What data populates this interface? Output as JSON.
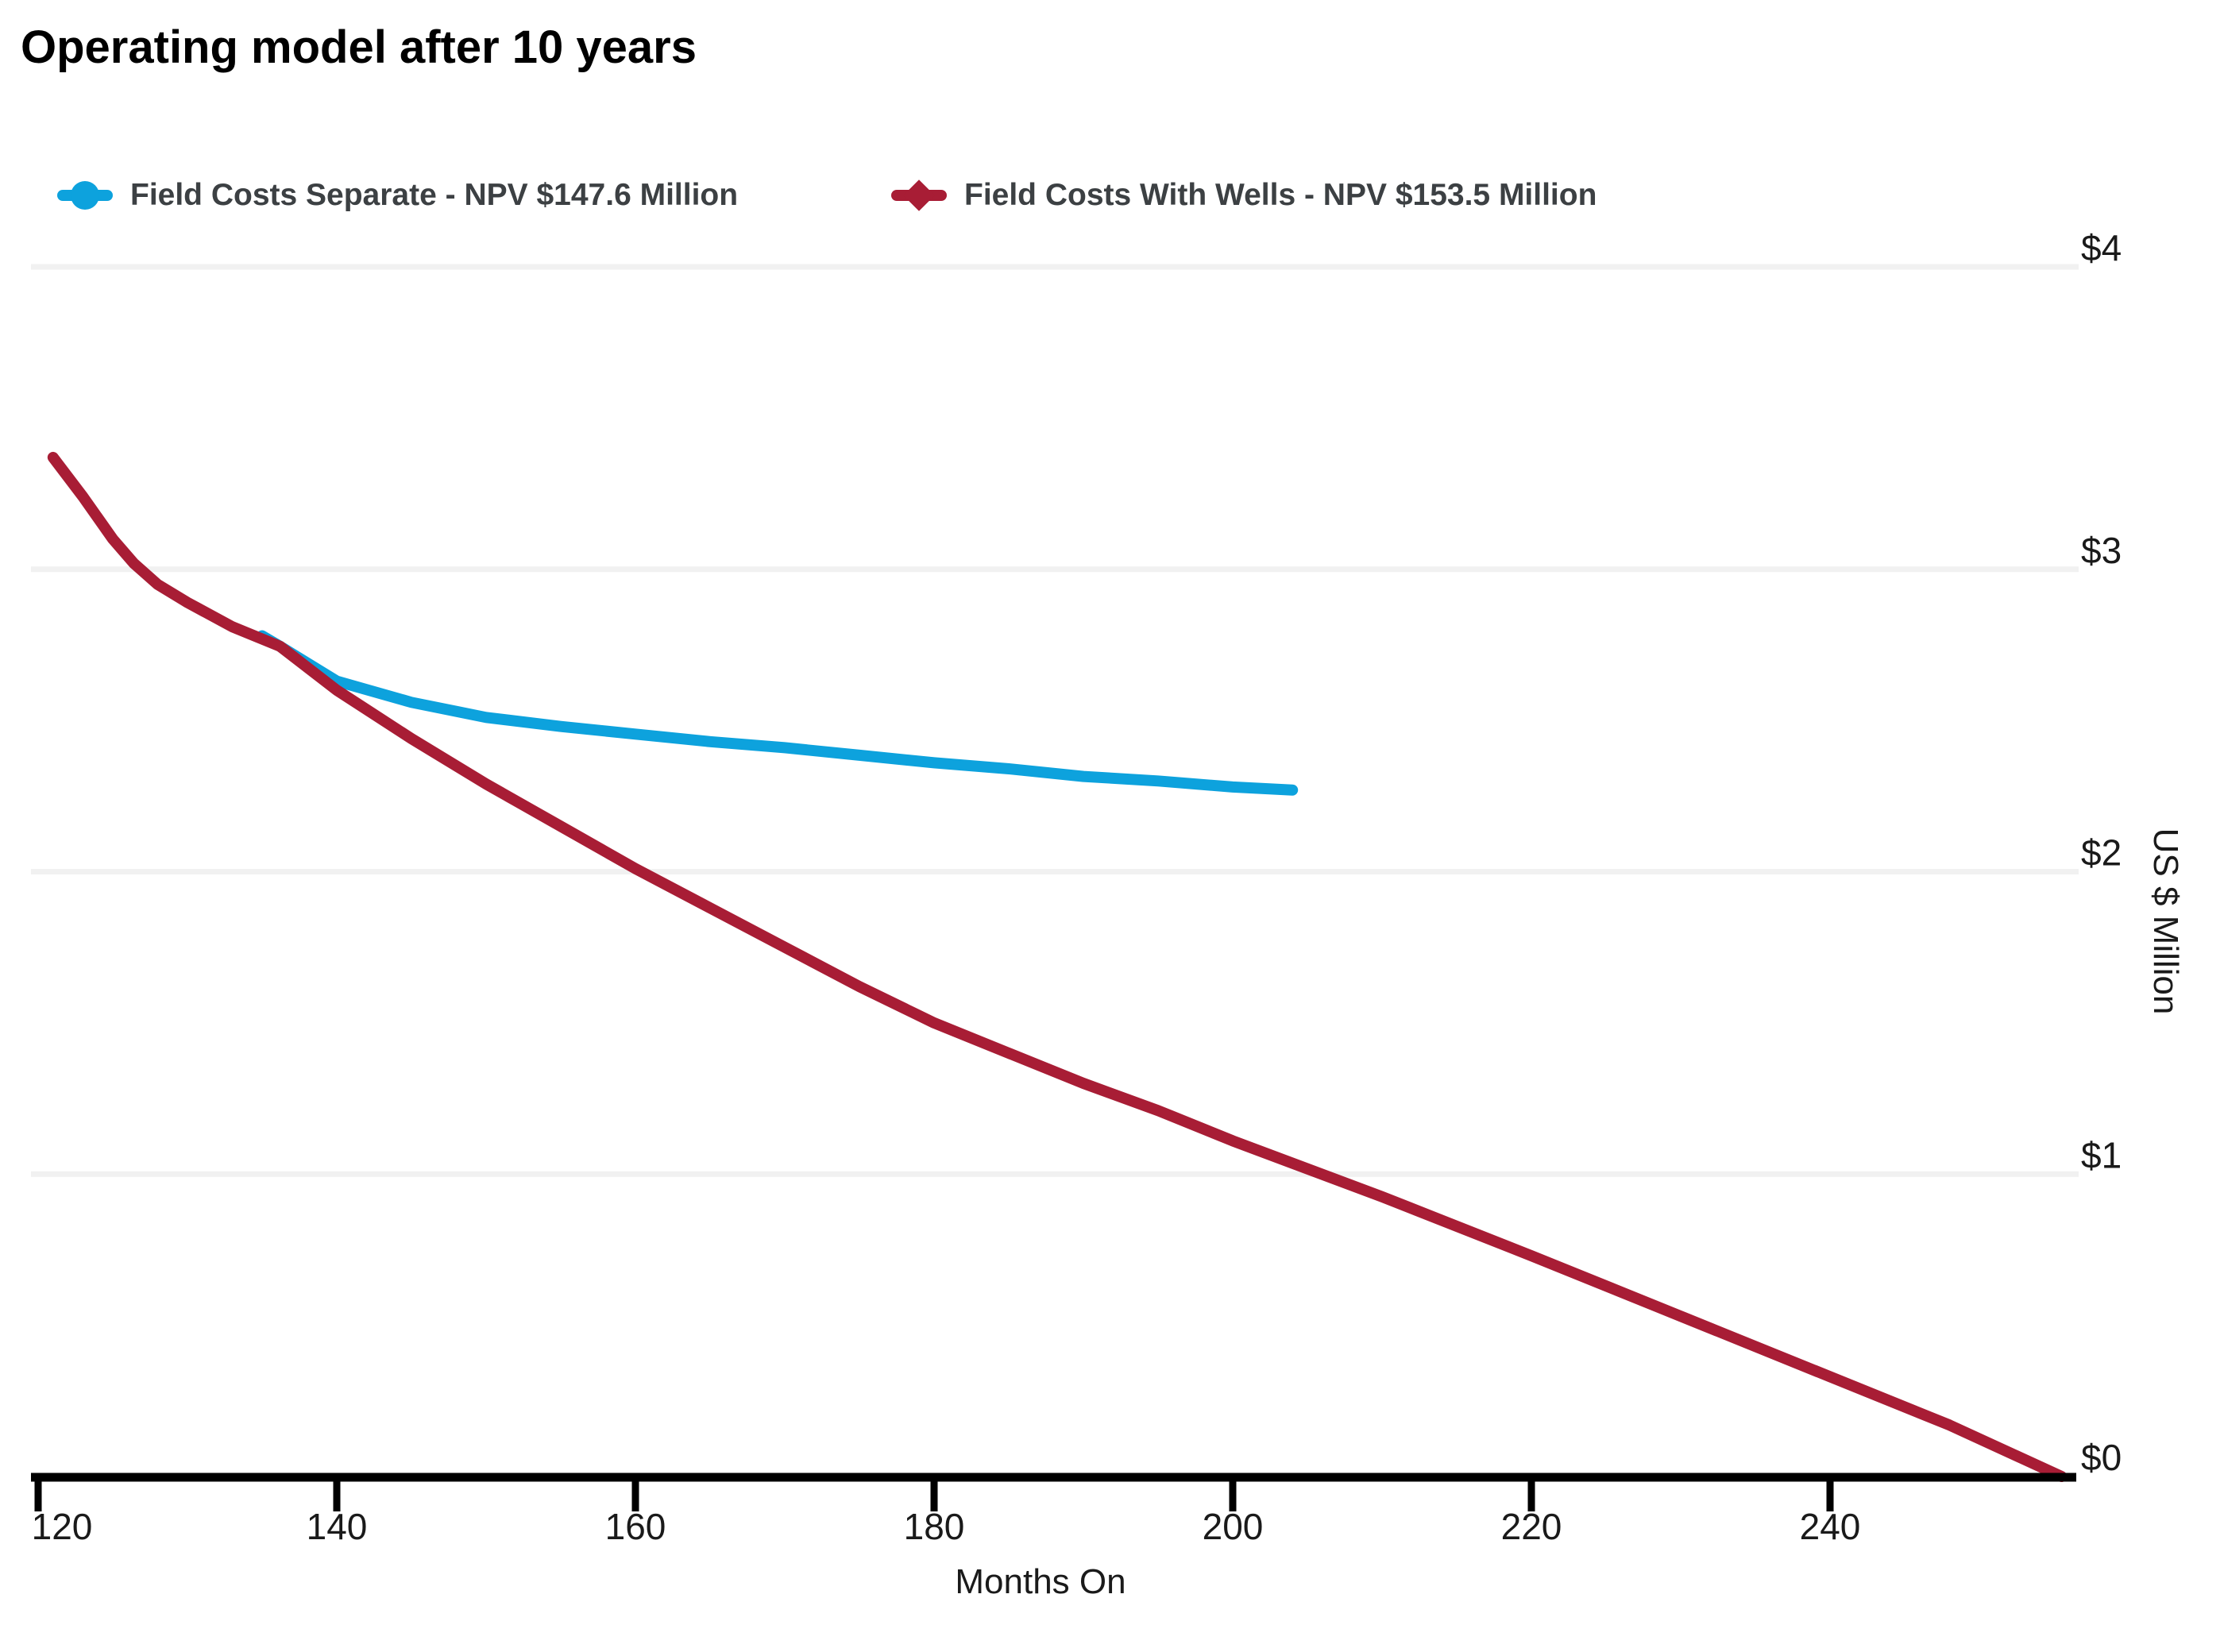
{
  "title": "Operating model after 10 years",
  "legend": {
    "items": [
      {
        "label": "Field Costs Separate - NPV $147.6 Million",
        "color": "#0da2dd"
      },
      {
        "label": "Field Costs With Wells - NPV $153.5 Million",
        "color": "#a81d35"
      }
    ]
  },
  "chart_data": {
    "type": "line",
    "title": "Operating model after 10 years",
    "xlabel": "Months On",
    "ylabel": "US $ Million",
    "grid": "horizontal",
    "legend_position": "top-left",
    "xlim": [
      119.5,
      256.6
    ],
    "ylim": [
      0,
      4.3
    ],
    "x_tick_values": [
      120,
      140,
      160,
      180,
      200,
      220,
      240
    ],
    "x_tick_labels": [
      "120",
      "140",
      "160",
      "180",
      "200",
      "220",
      "240"
    ],
    "y_tick_values": [
      0,
      1,
      2,
      3,
      4
    ],
    "y_tick_labels": [
      "$0",
      "$1",
      "$2",
      "$3",
      "$4"
    ],
    "series": [
      {
        "name": "Field Costs Separate - NPV $147.6 Million",
        "color": "#0da2dd",
        "marker": "circle",
        "points": [
          [
            135.0,
            2.78
          ],
          [
            136.2,
            2.745
          ],
          [
            140,
            2.63
          ],
          [
            145,
            2.56
          ],
          [
            150,
            2.51
          ],
          [
            155,
            2.48
          ],
          [
            160,
            2.455
          ],
          [
            165,
            2.43
          ],
          [
            170,
            2.41
          ],
          [
            175,
            2.385
          ],
          [
            180,
            2.36
          ],
          [
            185,
            2.34
          ],
          [
            190,
            2.315
          ],
          [
            195,
            2.3
          ],
          [
            200,
            2.28
          ],
          [
            204,
            2.27
          ]
        ]
      },
      {
        "name": "Field Costs With Wells - NPV $153.5 Million",
        "color": "#a81d35",
        "marker": "diamond",
        "points": [
          [
            121,
            3.37
          ],
          [
            123,
            3.24
          ],
          [
            125,
            3.1
          ],
          [
            126.4,
            3.02
          ],
          [
            128,
            2.95
          ],
          [
            130,
            2.89
          ],
          [
            133,
            2.81
          ],
          [
            136.2,
            2.745
          ],
          [
            140,
            2.6
          ],
          [
            145,
            2.44
          ],
          [
            150,
            2.29
          ],
          [
            155,
            2.15
          ],
          [
            160,
            2.01
          ],
          [
            165,
            1.88
          ],
          [
            170,
            1.75
          ],
          [
            175,
            1.62
          ],
          [
            180,
            1.5
          ],
          [
            185,
            1.4
          ],
          [
            190,
            1.3
          ],
          [
            195,
            1.21
          ],
          [
            200,
            1.11
          ],
          [
            210,
            0.925
          ],
          [
            220,
            0.73
          ],
          [
            230,
            0.53
          ],
          [
            240,
            0.33
          ],
          [
            248,
            0.17
          ],
          [
            255.5,
            0.0
          ]
        ]
      }
    ]
  }
}
